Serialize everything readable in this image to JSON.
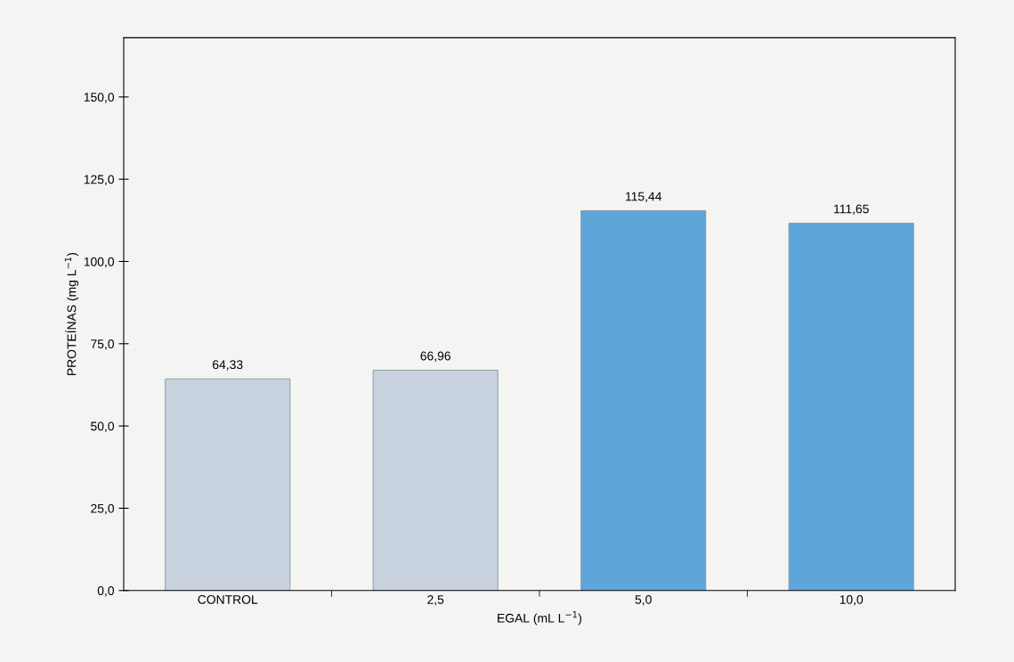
{
  "chart_data": {
    "type": "bar",
    "xlabel": "EGAL (mL L$^{−1}$)",
    "ylabel": "PROTEÍNAS (mg L$^{−1}$)",
    "categories": [
      "CONTROL",
      "2,5",
      "5,0",
      "10,0"
    ],
    "values": [
      64.33,
      66.96,
      115.44,
      111.65
    ],
    "colors": [
      "#c8d2de",
      "#c8d2de",
      "#5ea6da",
      "#5ea6da"
    ],
    "data_labels": true,
    "value_labels": [
      "64,33",
      "66,96",
      "115,44",
      "111,65"
    ],
    "ylim": [
      0,
      168
    ],
    "yticks": [
      {
        "value": 0,
        "label": "0,0"
      },
      {
        "value": 25,
        "label": "25,0"
      },
      {
        "value": 50,
        "label": "50,0"
      },
      {
        "value": 75,
        "label": "75,0"
      },
      {
        "value": 100,
        "label": "100,0"
      },
      {
        "value": 125,
        "label": "125,0"
      },
      {
        "value": 150,
        "label": "150,0"
      }
    ],
    "grid": false,
    "legend": false
  }
}
